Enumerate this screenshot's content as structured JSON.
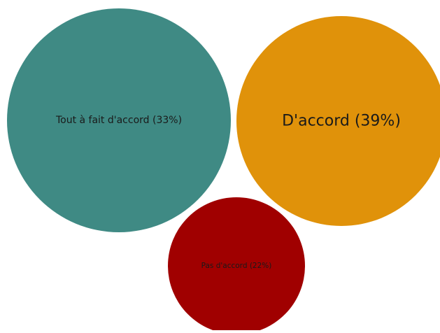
{
  "chart_data": {
    "type": "bubble",
    "title": "",
    "bubbles": [
      {
        "label": "Tout à fait d'accord (33%)",
        "category": "Tout à fait d'accord",
        "value": 33,
        "color": "#3F8A84"
      },
      {
        "label": "D'accord (39%)",
        "category": "D'accord",
        "value": 39,
        "color": "#E0920A"
      },
      {
        "label": "Pas d'accord (22%)",
        "category": "Pas d'accord",
        "value": 22,
        "color": "#A00000"
      }
    ]
  }
}
